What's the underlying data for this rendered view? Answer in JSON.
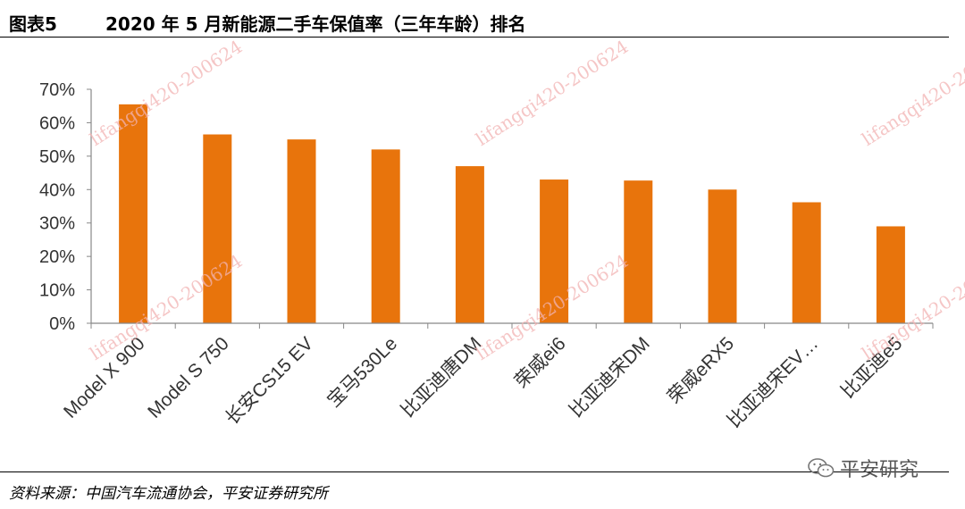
{
  "header": {
    "figure_label": "图表5",
    "title": "2020 年 5 月新能源二手车保值率（三年车龄）排名"
  },
  "footer": {
    "source": "资料来源：中国汽车流通协会，平安证券研究所",
    "brand": "平安研究"
  },
  "watermark": "lifangqi420-200624",
  "colors": {
    "bar": "#e8740c",
    "axis": "#888888"
  },
  "chart_data": {
    "type": "bar",
    "categories": [
      "Model X 900",
      "Model S 750",
      "长安CS15 EV",
      "宝马530Le",
      "比亚迪唐DM",
      "荣威ei6",
      "比亚迪宋DM",
      "荣威eRX5",
      "比亚迪宋EV…",
      "比亚迪e5"
    ],
    "values": [
      65.5,
      56.5,
      55,
      52,
      47,
      43,
      42.7,
      40,
      36.2,
      29
    ],
    "ylim": [
      0,
      70
    ],
    "yticks": [
      "0%",
      "10%",
      "20%",
      "30%",
      "40%",
      "50%",
      "60%",
      "70%"
    ],
    "grid": false,
    "legend": "none"
  }
}
